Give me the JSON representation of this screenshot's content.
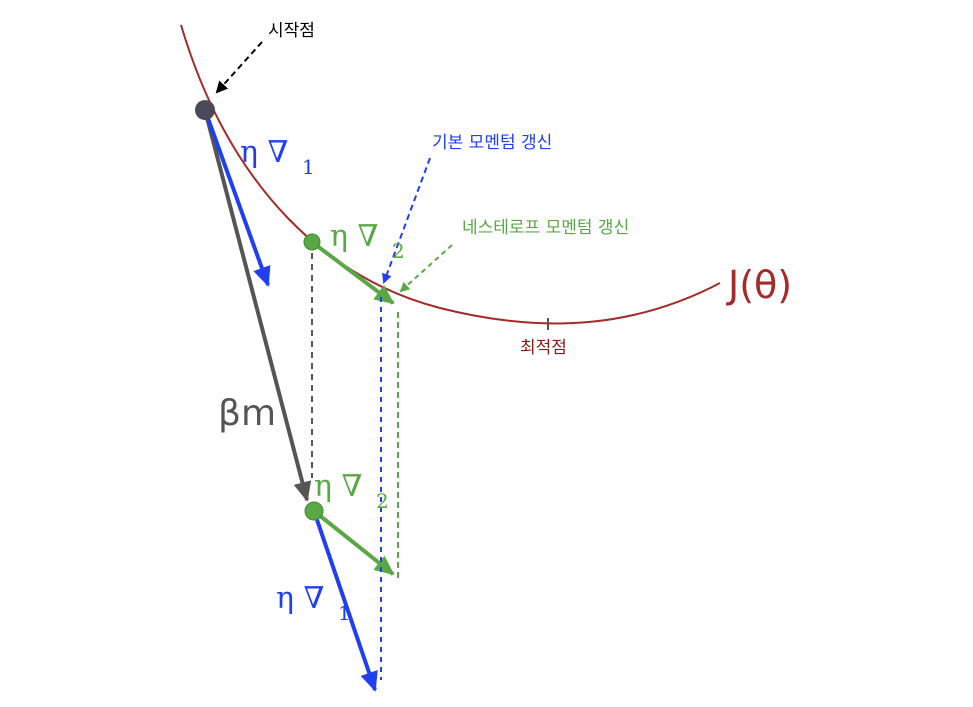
{
  "labels": {
    "start_point": "시작점",
    "basic_momentum_update": "기본 모멘텀 갱신",
    "nesterov_momentum_update": "네스테로프 모멘텀 갱신",
    "cost_function": "J(θ)",
    "optimum": "최적점",
    "beta_m": "βm",
    "eta_grad1_top": {
      "main": "η ∇",
      "sub": "1"
    },
    "eta_grad2_top": {
      "main": "η ∇",
      "sub": "2"
    },
    "eta_grad2_bottom": {
      "main": "η ∇",
      "sub": "2"
    },
    "eta_grad1_bottom": {
      "main": "η ∇",
      "sub": "1"
    }
  },
  "colors": {
    "curve": "#a52a2a",
    "optimum_label": "#8b1a1a",
    "momentum": "#555555",
    "gradient_1": "#1f3ff0",
    "gradient_2": "#5aa845",
    "start_point": "#4a4a5a",
    "annotation_black": "#000000"
  }
}
